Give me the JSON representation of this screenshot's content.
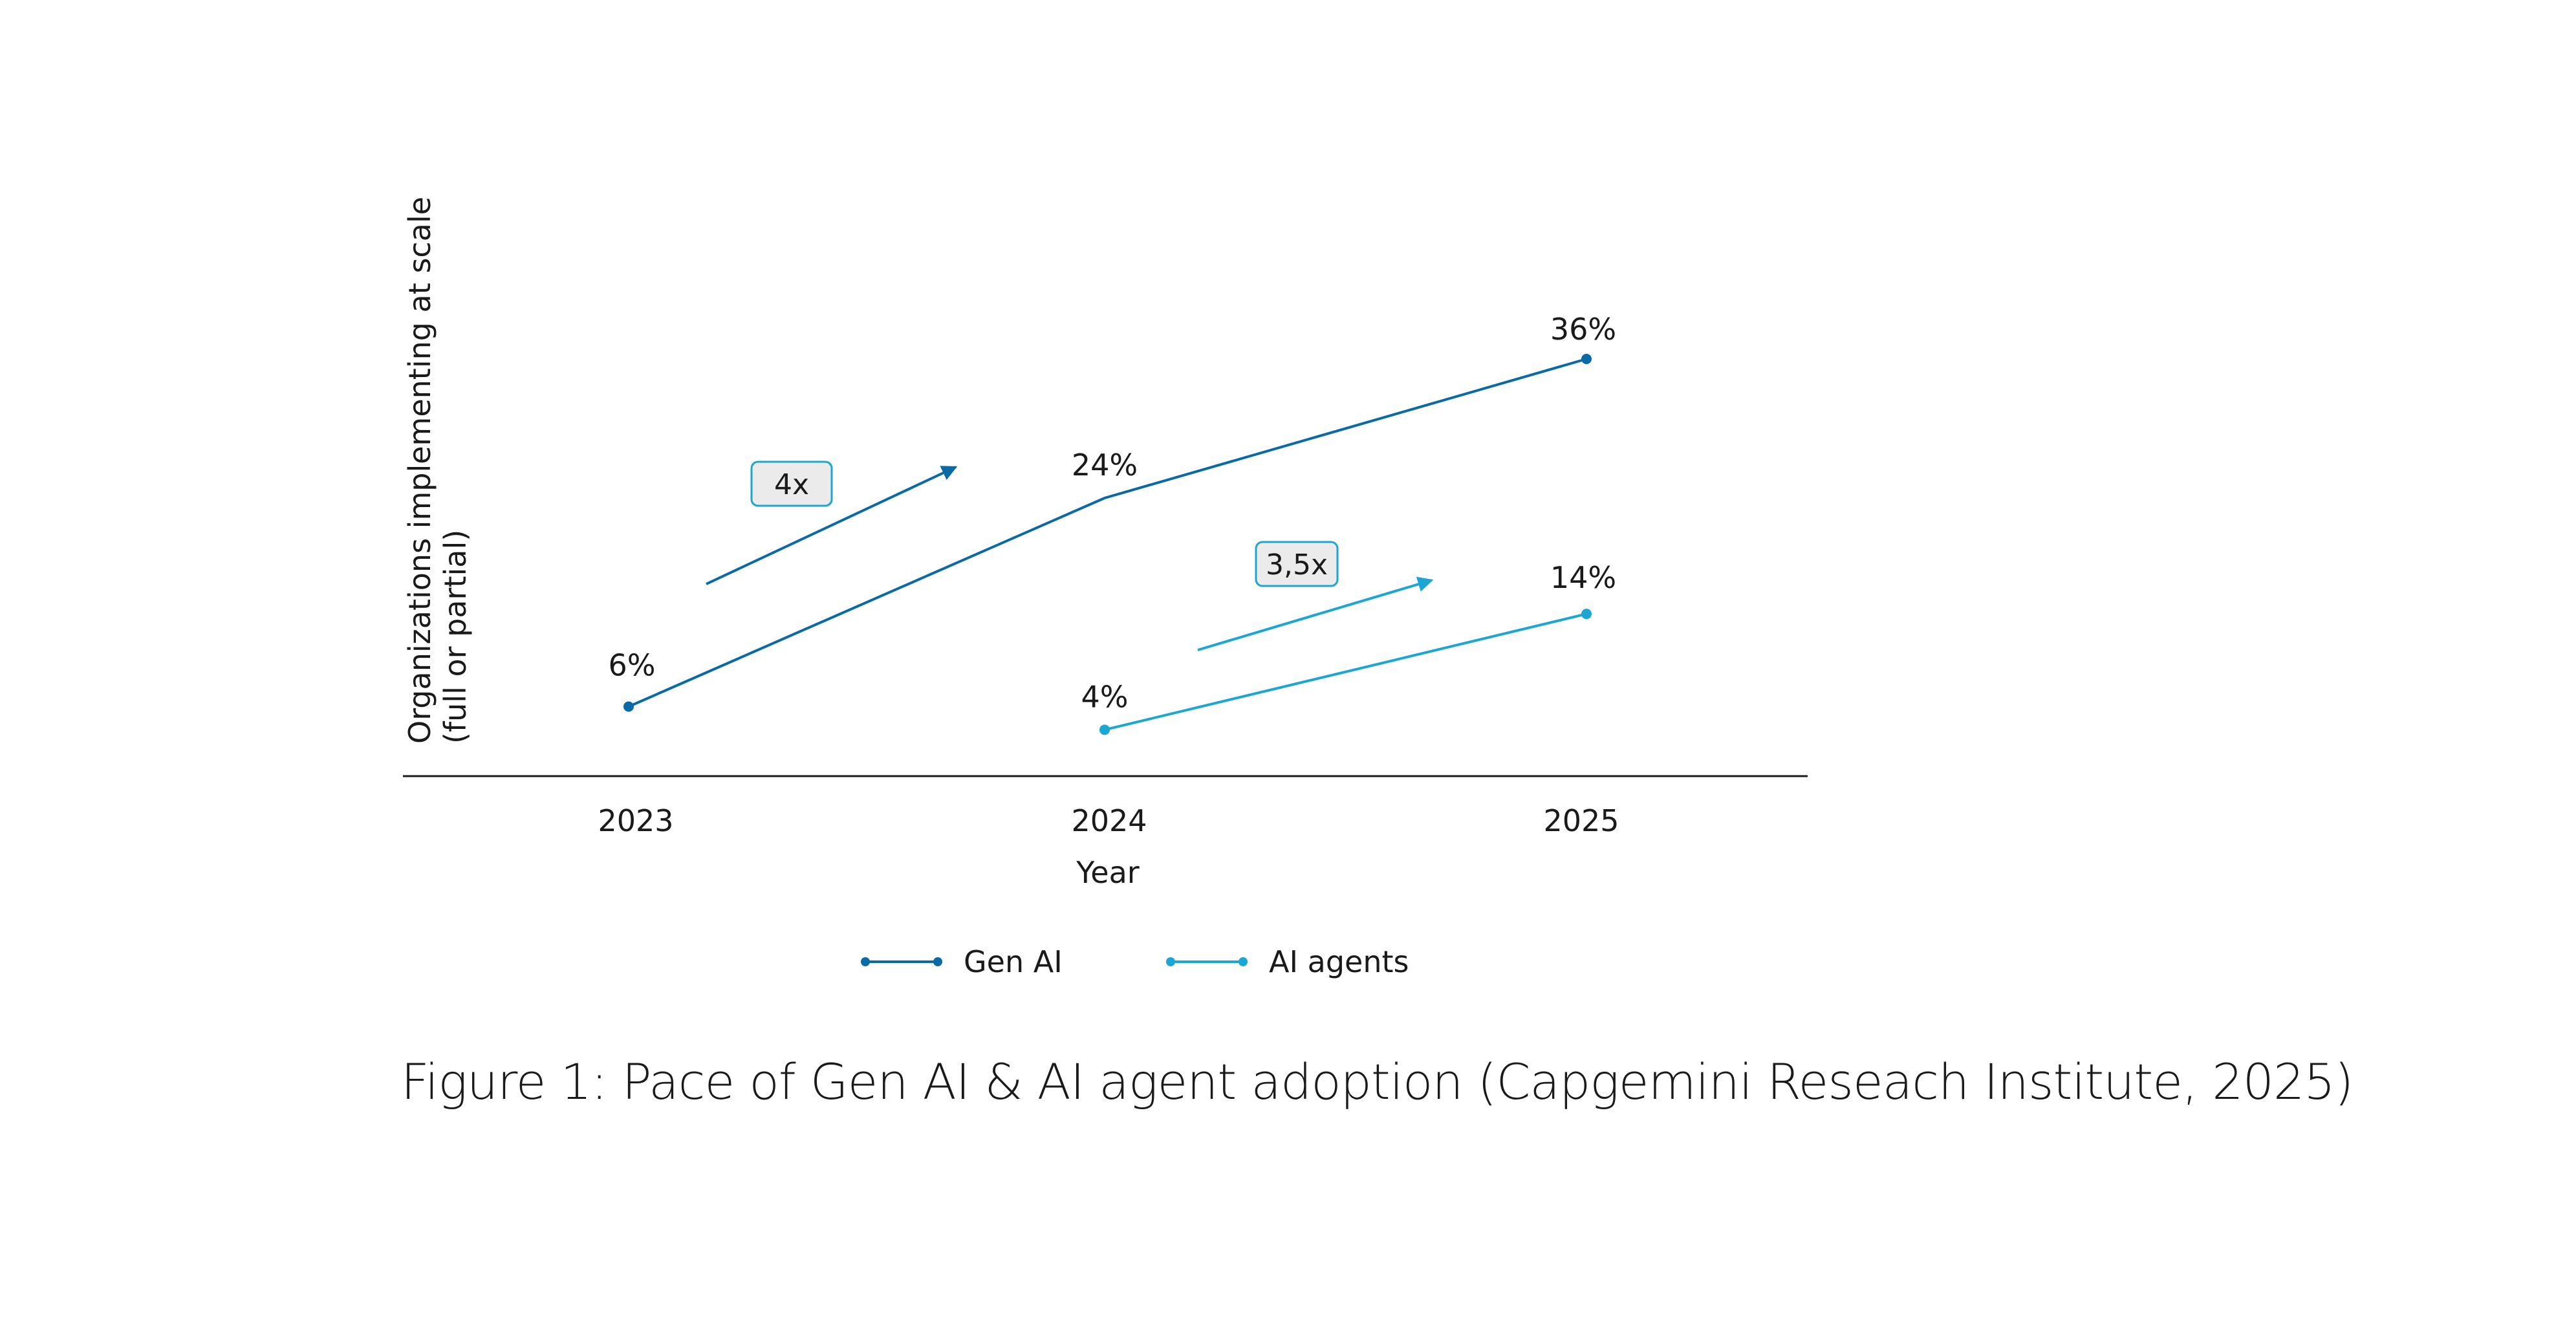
{
  "chart_data": {
    "type": "line",
    "categories": [
      "2023",
      "2024",
      "2025"
    ],
    "xlabel": "Year",
    "ylabel_lines": [
      "Organizations implementing at scale",
      "(full or partial)"
    ],
    "ylim": [
      0,
      40
    ],
    "grid": false,
    "legend_position": "bottom",
    "series": [
      {
        "name": "Gen AI",
        "color": "#0a6aa6",
        "points": [
          {
            "x": "2023",
            "y": 6,
            "label": "6%"
          },
          {
            "x": "2024",
            "y": 24,
            "label": "24%"
          },
          {
            "x": "2025",
            "y": 36,
            "label": "36%"
          }
        ],
        "growth_label": "4x"
      },
      {
        "name": "AI agents",
        "color": "#1ba6d4",
        "points": [
          {
            "x": "2024",
            "y": 4,
            "label": "4%"
          },
          {
            "x": "2025",
            "y": 14,
            "label": "14%"
          }
        ],
        "growth_label": "3,5x"
      }
    ]
  },
  "caption": "Figure 1: Pace of Gen AI & AI agent adoption (Capgemini Reseach Institute, 2025)",
  "colors": {
    "axis": "#1a1a1a",
    "badge_fill": "#ebebeb",
    "badge_border": "#1ba6d4"
  }
}
